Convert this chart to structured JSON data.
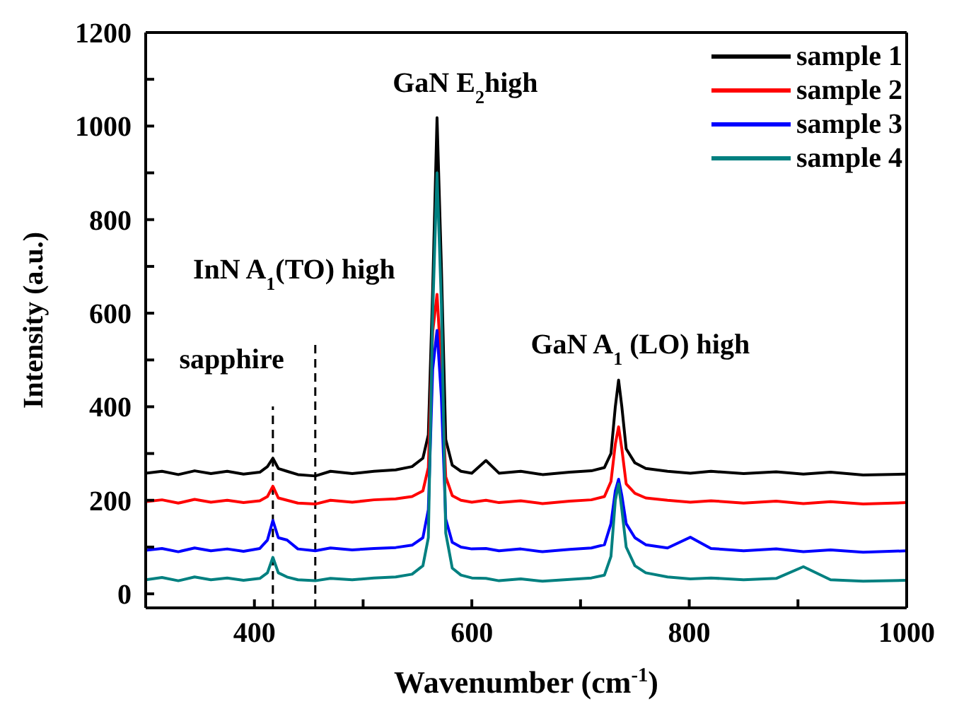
{
  "chart_data": {
    "type": "line",
    "xlabel": "Wavenumber (cm$^{-1}$)",
    "ylabel": "Intensity (a.u.)",
    "x": [
      300,
      315,
      330,
      345,
      360,
      375,
      390,
      405,
      412,
      417,
      422,
      430,
      440,
      456,
      470,
      490,
      510,
      530,
      545,
      555,
      560,
      564,
      568,
      572,
      576,
      582,
      590,
      600,
      613,
      625,
      645,
      665,
      690,
      710,
      722,
      728,
      732,
      735,
      738,
      742,
      750,
      760,
      780,
      801,
      820,
      850,
      880,
      905,
      930,
      960,
      1000
    ],
    "series": [
      {
        "name": "sample 1",
        "color": "#000000",
        "values": [
          258,
          262,
          255,
          263,
          257,
          262,
          256,
          260,
          272,
          290,
          268,
          262,
          255,
          252,
          262,
          257,
          262,
          265,
          272,
          290,
          340,
          650,
          1018,
          700,
          330,
          275,
          262,
          258,
          285,
          258,
          262,
          255,
          260,
          263,
          270,
          300,
          400,
          457,
          400,
          310,
          280,
          268,
          262,
          258,
          262,
          257,
          261,
          256,
          260,
          254,
          256
        ]
      },
      {
        "name": "sample 2",
        "color": "#ff0000",
        "values": [
          197,
          201,
          194,
          202,
          196,
          200,
          195,
          199,
          208,
          230,
          205,
          200,
          194,
          192,
          200,
          196,
          201,
          203,
          208,
          220,
          270,
          560,
          640,
          480,
          250,
          210,
          200,
          196,
          200,
          195,
          199,
          193,
          198,
          201,
          208,
          240,
          320,
          357,
          310,
          235,
          215,
          205,
          200,
          196,
          199,
          194,
          198,
          193,
          197,
          192,
          195
        ]
      },
      {
        "name": "sample 3",
        "color": "#0000ff",
        "values": [
          93,
          97,
          90,
          98,
          92,
          96,
          91,
          97,
          115,
          157,
          120,
          115,
          96,
          92,
          98,
          94,
          97,
          99,
          104,
          120,
          180,
          480,
          563,
          420,
          160,
          110,
          100,
          96,
          97,
          92,
          96,
          90,
          95,
          98,
          105,
          150,
          220,
          245,
          210,
          150,
          120,
          105,
          98,
          121,
          97,
          92,
          96,
          90,
          94,
          89,
          92
        ]
      },
      {
        "name": "sample 4",
        "color": "#008080",
        "values": [
          30,
          35,
          28,
          36,
          30,
          34,
          29,
          33,
          45,
          78,
          45,
          36,
          30,
          28,
          33,
          30,
          34,
          36,
          42,
          60,
          120,
          600,
          900,
          620,
          130,
          55,
          40,
          34,
          33,
          28,
          32,
          27,
          31,
          34,
          40,
          80,
          200,
          235,
          180,
          100,
          60,
          45,
          36,
          32,
          34,
          30,
          33,
          58,
          30,
          27,
          29
        ]
      }
    ],
    "xlim": [
      300,
      1000
    ],
    "xticks": [
      400,
      {
        "value": 500,
        "label": null
      },
      600,
      {
        "value": 700,
        "label": null
      },
      800,
      {
        "value": 900,
        "label": null
      },
      1000
    ],
    "ylim": [
      -30,
      1200
    ],
    "yticks": [
      0,
      {
        "value": 100,
        "label": null
      },
      200,
      {
        "value": 300,
        "label": null
      },
      400,
      {
        "value": 500,
        "label": null
      },
      600,
      {
        "value": 700,
        "label": null
      },
      800,
      {
        "value": 900,
        "label": null
      },
      1000,
      {
        "value": 1100,
        "label": null
      },
      1200
    ],
    "ref_lines": [
      {
        "axis": "x",
        "value": 417,
        "label": null,
        "line_style": "dashed",
        "color": "#000000"
      },
      {
        "axis": "x",
        "value": 456,
        "label": null,
        "line_style": "dashed",
        "color": "#000000"
      }
    ],
    "annotations": [
      "GaN E$_{2}$high",
      "InN A$_{1}$(TO) high",
      "sapphire",
      "GaN A$_{1}$ (LO) high"
    ],
    "legend": "top right",
    "grid": false,
    "marker": "none",
    "line_style": "solid"
  }
}
